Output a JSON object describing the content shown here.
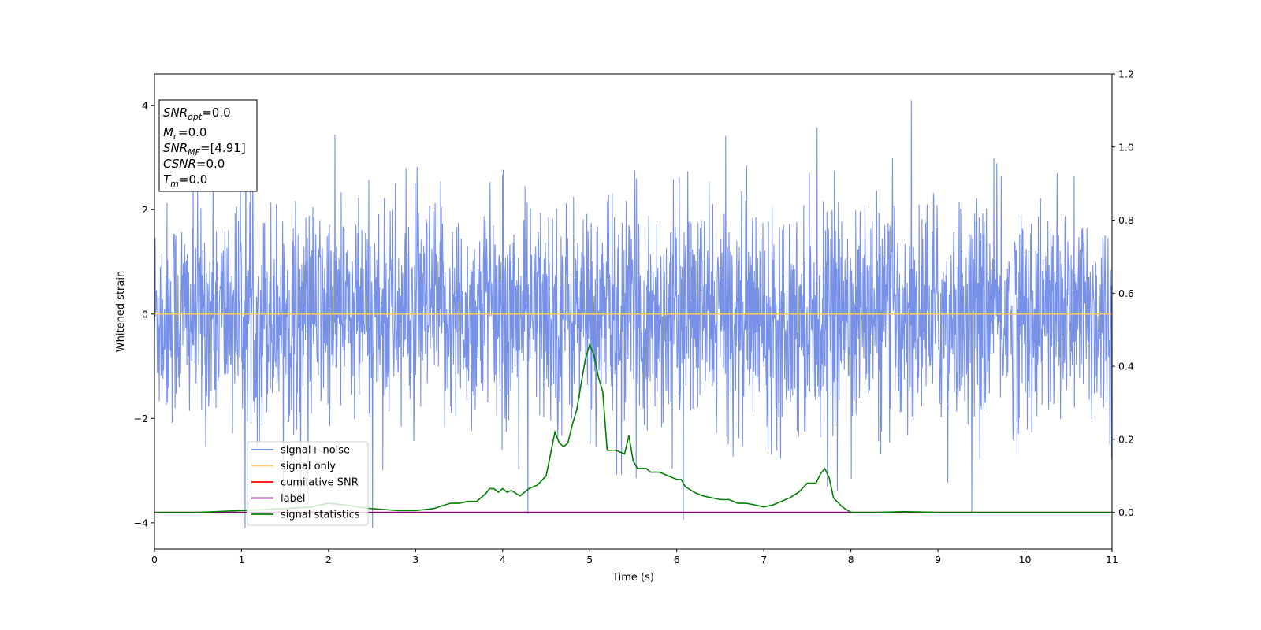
{
  "chart_data": {
    "type": "line",
    "xlabel": "Time (s)",
    "ylabel": "Whitened strain",
    "xlim": [
      0,
      11
    ],
    "ylim": [
      -4.5,
      4.6
    ],
    "y2lim": [
      -0.1,
      1.2
    ],
    "x_ticks": [
      "0",
      "1",
      "2",
      "3",
      "4",
      "5",
      "6",
      "7",
      "8",
      "9",
      "10",
      "11"
    ],
    "y_ticks": [
      "4",
      "2",
      "0",
      "−2",
      "−4"
    ],
    "y2_ticks": [
      "1.2",
      "1.0",
      "0.8",
      "0.6",
      "0.4",
      "0.2",
      "0.0"
    ],
    "grid": false,
    "legend": {
      "placement": "lower-left",
      "entries": [
        {
          "label": "signal+ noise",
          "color": "#6b88e6"
        },
        {
          "label": "signal only",
          "color": "#ffc870"
        },
        {
          "label": "cumilative SNR",
          "color": "#ff0000"
        },
        {
          "label": "label",
          "color": "#800080"
        },
        {
          "label": "signal statistics",
          "color": "#008000"
        }
      ]
    },
    "info_box": {
      "placement": "top-left",
      "lines": [
        {
          "base": "SNR",
          "sub": "opt",
          "value": "=0.0"
        },
        {
          "base": "M",
          "sub": "c",
          "value": "=0.0"
        },
        {
          "base": "SNR",
          "sub": "MF",
          "value": "=[4.91]"
        },
        {
          "base": "CSNR",
          "sub": "",
          "value": "=0.0"
        },
        {
          "base": "T",
          "sub": "m",
          "value": "=0.0"
        }
      ]
    },
    "series": [
      {
        "name": "signal+ noise",
        "axis": "left",
        "color": "#6b88e6",
        "description_values": {
          "typical_range": [
            -2.5,
            2.6
          ],
          "max": 4.1,
          "min": -4.1
        }
      },
      {
        "name": "signal only",
        "axis": "left",
        "color": "#ffc870",
        "x": [
          0,
          11
        ],
        "y": [
          0,
          0
        ]
      },
      {
        "name": "cumilative SNR",
        "axis": "right",
        "color": "#ff0000",
        "x": [
          0,
          11
        ],
        "y": [
          0,
          0
        ]
      },
      {
        "name": "label",
        "axis": "right",
        "color": "#800080",
        "x": [
          0,
          11
        ],
        "y": [
          0,
          0
        ]
      },
      {
        "name": "signal statistics",
        "axis": "right",
        "color": "#008000",
        "x": [
          0,
          0.5,
          1.0,
          1.5,
          1.8,
          2.0,
          2.2,
          2.5,
          2.8,
          3.0,
          3.2,
          3.4,
          3.5,
          3.6,
          3.7,
          3.8,
          3.85,
          3.9,
          3.95,
          4.0,
          4.05,
          4.1,
          4.2,
          4.3,
          4.4,
          4.5,
          4.6,
          4.65,
          4.7,
          4.75,
          4.8,
          4.85,
          4.9,
          4.95,
          5.0,
          5.05,
          5.1,
          5.15,
          5.2,
          5.3,
          5.4,
          5.45,
          5.5,
          5.55,
          5.6,
          5.65,
          5.7,
          5.8,
          5.9,
          6.0,
          6.05,
          6.1,
          6.2,
          6.3,
          6.4,
          6.5,
          6.6,
          6.7,
          6.8,
          6.9,
          7.0,
          7.1,
          7.2,
          7.3,
          7.4,
          7.5,
          7.6,
          7.65,
          7.7,
          7.75,
          7.8,
          7.9,
          8.0,
          8.1,
          8.3,
          8.6,
          9.0,
          9.5,
          10.0,
          10.5,
          11.0
        ],
        "y": [
          0.0,
          0.0,
          0.005,
          0.01,
          0.015,
          0.025,
          0.02,
          0.01,
          0.005,
          0.005,
          0.01,
          0.025,
          0.025,
          0.03,
          0.03,
          0.05,
          0.065,
          0.065,
          0.055,
          0.065,
          0.055,
          0.06,
          0.045,
          0.065,
          0.075,
          0.1,
          0.22,
          0.19,
          0.18,
          0.19,
          0.24,
          0.28,
          0.35,
          0.42,
          0.46,
          0.43,
          0.37,
          0.33,
          0.17,
          0.17,
          0.16,
          0.21,
          0.14,
          0.12,
          0.12,
          0.12,
          0.11,
          0.11,
          0.1,
          0.09,
          0.09,
          0.07,
          0.055,
          0.045,
          0.04,
          0.035,
          0.035,
          0.025,
          0.025,
          0.02,
          0.015,
          0.02,
          0.03,
          0.04,
          0.055,
          0.08,
          0.08,
          0.105,
          0.12,
          0.095,
          0.04,
          0.015,
          0.0,
          0.0,
          0.0,
          0.002,
          0.0,
          0.0,
          0.0,
          0.0,
          0.0
        ]
      }
    ]
  }
}
